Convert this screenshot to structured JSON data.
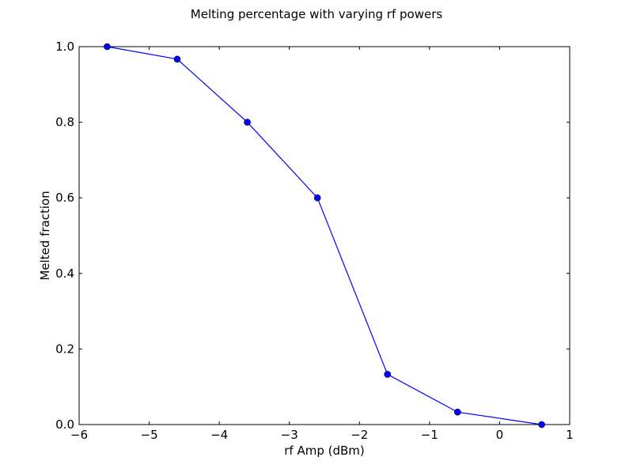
{
  "chart_data": {
    "type": "line",
    "title": "Melting percentage with varying rf powers",
    "xlabel": "rf Amp (dBm)",
    "ylabel": "Melted fraction",
    "xlim": [
      -6,
      1
    ],
    "ylim": [
      0.0,
      1.0
    ],
    "xticks": [
      "−6",
      "−5",
      "−4",
      "−3",
      "−2",
      "−1",
      "0",
      "1"
    ],
    "xtick_values": [
      -6,
      -5,
      -4,
      -3,
      -2,
      -1,
      0,
      1
    ],
    "yticks": [
      "0.0",
      "0.2",
      "0.4",
      "0.6",
      "0.8",
      "1.0"
    ],
    "ytick_values": [
      0.0,
      0.2,
      0.4,
      0.6,
      0.8,
      1.0
    ],
    "grid": false,
    "series": [
      {
        "color": "#0000ff",
        "marker": "circle",
        "x": [
          -5.6,
          -4.6,
          -3.6,
          -2.6,
          -1.6,
          -0.6,
          0.6
        ],
        "y": [
          1.0,
          0.967,
          0.8,
          0.6,
          0.133,
          0.033,
          0.0
        ]
      }
    ]
  }
}
